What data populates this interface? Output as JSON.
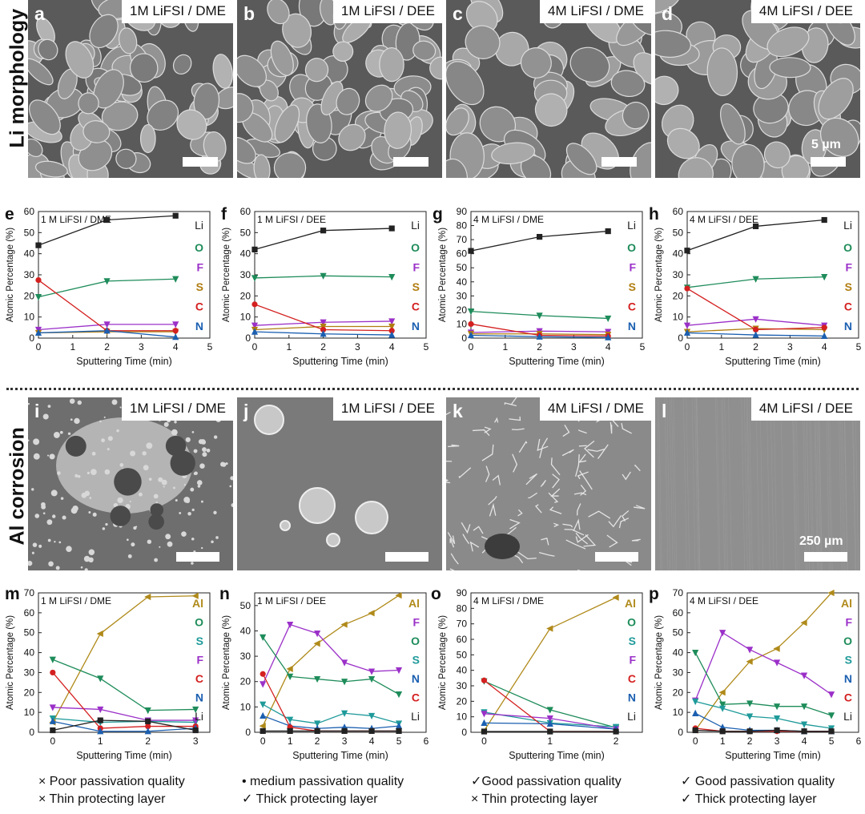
{
  "row_titles": {
    "top": "Li morphology",
    "bottom": "Al corrosion"
  },
  "sem_panels": [
    {
      "letter": "a",
      "label": "1M LiFSI / DME"
    },
    {
      "letter": "b",
      "label": "1M LiFSI / DEE"
    },
    {
      "letter": "c",
      "label": "4M LiFSI / DME"
    },
    {
      "letter": "d",
      "label": "4M LiFSI / DEE",
      "scale_label": "5 µm"
    },
    {
      "letter": "i",
      "label": "1M LiFSI / DME"
    },
    {
      "letter": "j",
      "label": "1M LiFSI / DEE"
    },
    {
      "letter": "k",
      "label": "4M LiFSI / DME"
    },
    {
      "letter": "l",
      "label": "4M LiFSI / DEE",
      "scale_label": "250 µm"
    }
  ],
  "element_colors": {
    "Li": "#222222",
    "O": "#1e8c5a",
    "F": "#9b30c8",
    "S": "#b07d10",
    "C": "#d42020",
    "N": "#1b5fb0",
    "Al": "#b08a1a",
    "S_teal": "#1f9a9a"
  },
  "chart_data": [
    {
      "panel": "e",
      "type": "line",
      "title": "1 M LiFSI / DME",
      "xlabel": "Sputtering Time (min)",
      "ylabel": "Atomic Percentage (%)",
      "xlim": [
        0,
        5
      ],
      "ylim": [
        0,
        60
      ],
      "xticks": [
        0,
        1,
        2,
        3,
        4,
        5
      ],
      "yticks": [
        0,
        10,
        20,
        30,
        40,
        50,
        60
      ],
      "x": [
        0,
        2,
        4
      ],
      "series": [
        {
          "name": "Li",
          "values": [
            44,
            56,
            58
          ]
        },
        {
          "name": "O",
          "values": [
            19.5,
            27,
            28
          ]
        },
        {
          "name": "F",
          "values": [
            4,
            6.5,
            6.5
          ]
        },
        {
          "name": "S",
          "values": [
            2.5,
            3,
            3
          ]
        },
        {
          "name": "C",
          "values": [
            27.5,
            3.5,
            3.5
          ]
        },
        {
          "name": "N",
          "values": [
            2.5,
            3.5,
            0.5
          ]
        }
      ],
      "legend": [
        "Li",
        "O",
        "F",
        "S",
        "C",
        "N"
      ]
    },
    {
      "panel": "f",
      "type": "line",
      "title": "1 M LiFSI / DEE",
      "xlabel": "Sputtering Time (min)",
      "ylabel": "Atomic Percentage (%)",
      "xlim": [
        0,
        5
      ],
      "ylim": [
        0,
        60
      ],
      "xticks": [
        0,
        1,
        2,
        3,
        4,
        5
      ],
      "yticks": [
        0,
        10,
        20,
        30,
        40,
        50,
        60
      ],
      "x": [
        0,
        2,
        4
      ],
      "series": [
        {
          "name": "Li",
          "values": [
            42,
            51,
            52
          ]
        },
        {
          "name": "O",
          "values": [
            28.5,
            29.5,
            29
          ]
        },
        {
          "name": "F",
          "values": [
            6,
            7.5,
            8
          ]
        },
        {
          "name": "S",
          "values": [
            4,
            5.5,
            5.5
          ]
        },
        {
          "name": "C",
          "values": [
            16,
            4,
            3.5
          ]
        },
        {
          "name": "N",
          "values": [
            3,
            2,
            1.5
          ]
        }
      ],
      "legend": [
        "Li",
        "O",
        "F",
        "S",
        "C",
        "N"
      ]
    },
    {
      "panel": "g",
      "type": "line",
      "title": "4 M LiFSI / DME",
      "xlabel": "Sputtering Time (min)",
      "ylabel": "Atomic Percentage (%)",
      "xlim": [
        0,
        5
      ],
      "ylim": [
        0,
        90
      ],
      "xticks": [
        0,
        1,
        2,
        3,
        4,
        5
      ],
      "yticks": [
        0,
        10,
        20,
        30,
        40,
        50,
        60,
        70,
        80,
        90
      ],
      "x": [
        0,
        2,
        4
      ],
      "series": [
        {
          "name": "Li",
          "values": [
            62,
            72,
            76
          ]
        },
        {
          "name": "O",
          "values": [
            19,
            16,
            14
          ]
        },
        {
          "name": "F",
          "values": [
            4,
            5,
            4.5
          ]
        },
        {
          "name": "S",
          "values": [
            3,
            3,
            2.5
          ]
        },
        {
          "name": "C",
          "values": [
            10,
            2,
            1.5
          ]
        },
        {
          "name": "N",
          "values": [
            2,
            1,
            0.5
          ]
        }
      ],
      "legend": [
        "Li",
        "O",
        "F",
        "S",
        "C",
        "N"
      ]
    },
    {
      "panel": "h",
      "type": "line",
      "title": "4 M LiFSI / DEE",
      "xlabel": "Sputtering Time (min)",
      "ylabel": "Atomic Percentage (%)",
      "xlim": [
        0,
        5
      ],
      "ylim": [
        0,
        60
      ],
      "xticks": [
        0,
        1,
        2,
        3,
        4,
        5
      ],
      "yticks": [
        0,
        10,
        20,
        30,
        40,
        50,
        60
      ],
      "x": [
        0,
        2,
        4
      ],
      "series": [
        {
          "name": "Li",
          "values": [
            41.5,
            53,
            56
          ]
        },
        {
          "name": "O",
          "values": [
            24,
            28,
            29
          ]
        },
        {
          "name": "F",
          "values": [
            6,
            9,
            6
          ]
        },
        {
          "name": "S",
          "values": [
            3,
            4.5,
            4
          ]
        },
        {
          "name": "C",
          "values": [
            23.5,
            4,
            5
          ]
        },
        {
          "name": "N",
          "values": [
            2.5,
            1.5,
            1
          ]
        }
      ],
      "legend": [
        "Li",
        "O",
        "F",
        "S",
        "C",
        "N"
      ]
    },
    {
      "panel": "m",
      "type": "line",
      "title": "1 M LiFSI / DME",
      "xlabel": "Sputtering Time (min)",
      "ylabel": "Atomic Percentage (%)",
      "xlim": [
        -0.3,
        3.3
      ],
      "ylim": [
        0,
        70
      ],
      "xticks": [
        0,
        1,
        2,
        3
      ],
      "yticks": [
        0,
        10,
        20,
        30,
        40,
        50,
        60,
        70
      ],
      "x": [
        0,
        1,
        2,
        3
      ],
      "series": [
        {
          "name": "Al",
          "values": [
            5,
            49.5,
            68,
            68.5
          ]
        },
        {
          "name": "O",
          "values": [
            36.5,
            27,
            11,
            11.5
          ]
        },
        {
          "name": "S",
          "values": [
            7,
            5,
            5.5,
            5
          ]
        },
        {
          "name": "F",
          "values": [
            12.5,
            11.5,
            6,
            6
          ]
        },
        {
          "name": "C",
          "values": [
            30,
            2,
            3,
            3
          ]
        },
        {
          "name": "N",
          "values": [
            5.5,
            0.5,
            0.5,
            2
          ]
        },
        {
          "name": "Li",
          "values": [
            1,
            6,
            5.5,
            1
          ]
        }
      ],
      "legend": [
        "Al",
        "O",
        "S",
        "F",
        "C",
        "N",
        "Li"
      ]
    },
    {
      "panel": "n",
      "type": "line",
      "title": "1 M LiFSI / DEE",
      "xlabel": "Sputtering Time (min)",
      "ylabel": "Atomic Percentage (%)",
      "xlim": [
        -0.3,
        6
      ],
      "ylim": [
        0,
        55
      ],
      "xticks": [
        0,
        1,
        2,
        3,
        4,
        5,
        6
      ],
      "yticks": [
        0,
        10,
        20,
        30,
        40,
        50
      ],
      "x": [
        0,
        1,
        2,
        3,
        4,
        5
      ],
      "series": [
        {
          "name": "Al",
          "values": [
            2.5,
            25,
            35,
            42.5,
            47,
            54
          ]
        },
        {
          "name": "F",
          "values": [
            19,
            42.5,
            39,
            27.5,
            24,
            24.5
          ]
        },
        {
          "name": "O",
          "values": [
            37.5,
            22,
            21,
            20,
            21,
            15
          ]
        },
        {
          "name": "S",
          "values": [
            11,
            5,
            3.5,
            7.5,
            6.5,
            3.5
          ]
        },
        {
          "name": "N",
          "values": [
            6.5,
            2.5,
            1.5,
            2,
            1.5,
            2.5
          ]
        },
        {
          "name": "C",
          "values": [
            23,
            2,
            0.5,
            0.5,
            0.5,
            0.5
          ]
        },
        {
          "name": "Li",
          "values": [
            0.5,
            0.5,
            0.5,
            0.5,
            0.5,
            0.5
          ]
        }
      ],
      "legend": [
        "Al",
        "F",
        "O",
        "S",
        "N",
        "C",
        "Li"
      ]
    },
    {
      "panel": "o",
      "type": "line",
      "title": "4 M LiFSI / DME",
      "xlabel": "Sputtering Time (min)",
      "ylabel": "Atomic Percentage (%)",
      "xlim": [
        -0.2,
        2.4
      ],
      "ylim": [
        0,
        90
      ],
      "xticks": [
        0,
        1,
        2
      ],
      "yticks": [
        0,
        10,
        20,
        30,
        40,
        50,
        60,
        70,
        80,
        90
      ],
      "x": [
        0,
        1,
        2
      ],
      "series": [
        {
          "name": "Al",
          "values": [
            1,
            67,
            87
          ]
        },
        {
          "name": "O",
          "values": [
            33,
            14.5,
            3
          ]
        },
        {
          "name": "S",
          "values": [
            13,
            6,
            3.5
          ]
        },
        {
          "name": "F",
          "values": [
            12,
            9,
            2
          ]
        },
        {
          "name": "C",
          "values": [
            33.5,
            0.5,
            0.5
          ]
        },
        {
          "name": "N",
          "values": [
            6,
            5.5,
            2
          ]
        },
        {
          "name": "Li",
          "values": [
            0.5,
            0.5,
            0.5
          ]
        }
      ],
      "legend": [
        "Al",
        "O",
        "S",
        "F",
        "C",
        "N",
        "Li"
      ]
    },
    {
      "panel": "p",
      "type": "line",
      "title": "4 M LiFSI / DEE",
      "xlabel": "Sputtering Time (min)",
      "ylabel": "Atomic Percentage (%)",
      "xlim": [
        -0.3,
        6
      ],
      "ylim": [
        0,
        70
      ],
      "xticks": [
        0,
        1,
        2,
        3,
        4,
        5,
        6
      ],
      "yticks": [
        0,
        10,
        20,
        30,
        40,
        50,
        60,
        70
      ],
      "x": [
        0,
        1,
        2,
        3,
        4,
        5
      ],
      "series": [
        {
          "name": "Al",
          "values": [
            1,
            20,
            35.5,
            42,
            55,
            70
          ]
        },
        {
          "name": "F",
          "values": [
            16,
            50,
            41.5,
            35,
            28.5,
            19
          ]
        },
        {
          "name": "O",
          "values": [
            40,
            14,
            14.5,
            13,
            13,
            8.5
          ]
        },
        {
          "name": "S",
          "values": [
            15.5,
            12,
            8,
            7,
            4,
            2
          ]
        },
        {
          "name": "N",
          "values": [
            9.5,
            2.5,
            1,
            1,
            0.5,
            0.5
          ]
        },
        {
          "name": "C",
          "values": [
            2,
            0.5,
            0.5,
            0.5,
            0.5,
            0.5
          ]
        },
        {
          "name": "Li",
          "values": [
            1,
            0.5,
            0.5,
            1,
            0.5,
            0.5
          ]
        }
      ],
      "legend": [
        "Al",
        "F",
        "O",
        "S",
        "N",
        "C",
        "Li"
      ]
    }
  ],
  "summaries": [
    {
      "line1": "× Poor passivation quality",
      "line2": "× Thin protecting layer"
    },
    {
      "line1": "• medium passivation quality",
      "line2": "✓  Thick protecting layer"
    },
    {
      "line1": "✓Good passivation quality",
      "line2": "× Thin protecting layer"
    },
    {
      "line1": "✓  Good passivation quality",
      "line2": "✓  Thick protecting layer"
    }
  ]
}
